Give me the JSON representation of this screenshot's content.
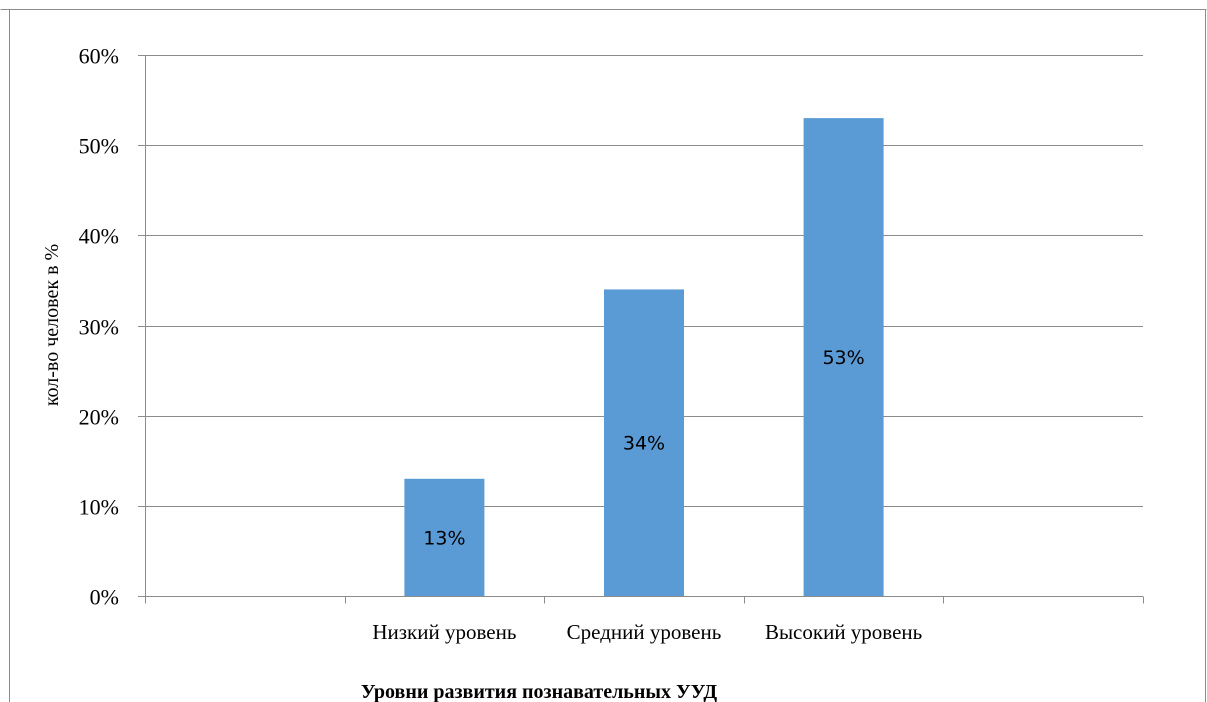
{
  "chart_data": {
    "type": "bar",
    "categories": [
      "",
      "Низкий уровень",
      "Средний уровень",
      "Высокий уровень",
      ""
    ],
    "values": [
      null,
      0.13,
      0.34,
      0.53,
      null
    ],
    "data_labels": [
      "",
      "13%",
      "34%",
      "53%",
      ""
    ],
    "y_ticks": [
      "0%",
      "10%",
      "20%",
      "30%",
      "40%",
      "50%",
      "60%"
    ],
    "ylim": [
      0,
      0.6
    ],
    "ylabel": "кол-во человек в %",
    "xlabel": "Уровни развития познавательных УУД",
    "title": "",
    "grid": true,
    "legend": "none",
    "bar_color": "#5b9bd5",
    "grid_color": "#8c8c8c"
  }
}
